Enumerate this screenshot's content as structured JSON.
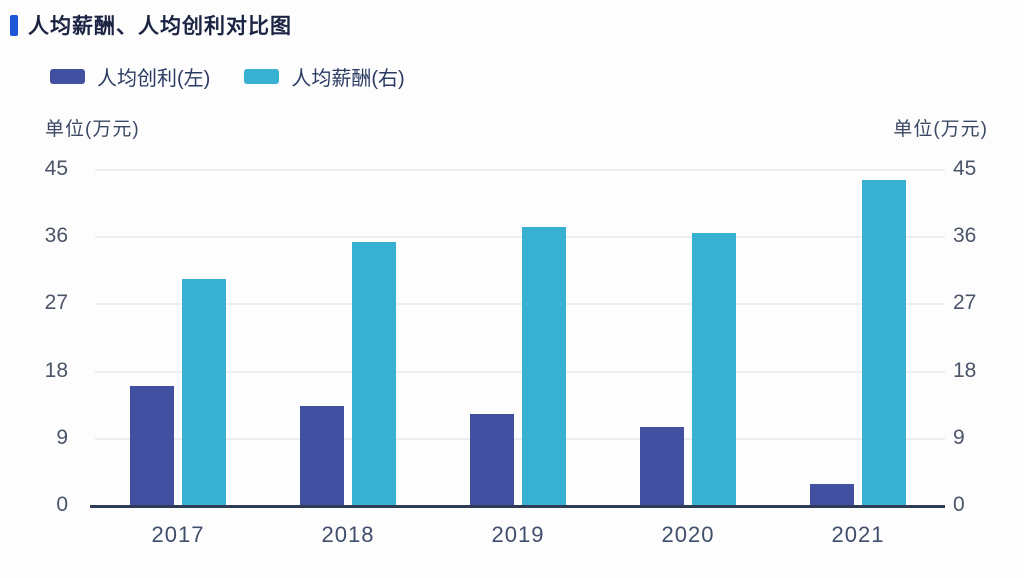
{
  "title": "人均薪酬、人均创利对比图",
  "accent_color": "#1e56d8",
  "axis_unit_left": "单位(万元)",
  "axis_unit_right": "单位(万元)",
  "legend": {
    "items": [
      {
        "label": "人均创利(左)",
        "color": "#4150a0"
      },
      {
        "label": "人均薪酬(右)",
        "color": "#37b0d2"
      }
    ]
  },
  "colors": {
    "title_text": "#1c2443",
    "profit_bar": "#4150a0",
    "salary_bar": "#37b0d2",
    "axis_line": "#2f3c55",
    "gridline": "#eceef3"
  },
  "chart_data": {
    "type": "bar",
    "title": "人均薪酬、人均创利对比图",
    "categories": [
      "2017",
      "2018",
      "2019",
      "2020",
      "2021"
    ],
    "series": [
      {
        "name": "人均创利(左)",
        "color": "#4150a0",
        "axis": "left",
        "values": [
          16.1,
          13.4,
          12.3,
          10.6,
          2.9
        ]
      },
      {
        "name": "人均薪酬(右)",
        "color": "#37b0d2",
        "axis": "right",
        "values": [
          30.4,
          35.4,
          37.3,
          36.6,
          43.6
        ]
      }
    ],
    "ylabel_left": "单位(万元)",
    "ylabel_right": "单位(万元)",
    "yticks": [
      0,
      9,
      18,
      27,
      36,
      45
    ],
    "ylim": [
      0,
      45
    ],
    "grid": true,
    "legend_position": "top-left",
    "xlabel": ""
  }
}
